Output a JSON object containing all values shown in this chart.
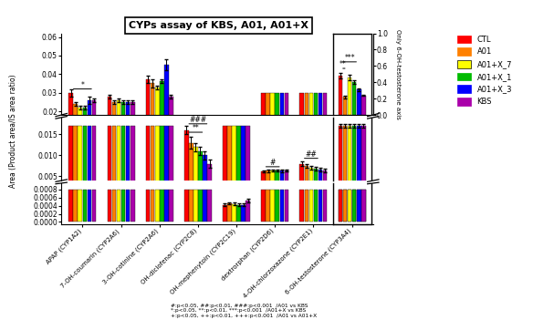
{
  "title": "CYPs assay of KBS, A01, A01+X",
  "ylabel": "Area (Product area/IS area ratio)",
  "ylabel_right": "Only 6-OH-testosterone axis",
  "groups": [
    "APAP (CYP1A2)",
    "7-OH-coumarin (CYP2A6)",
    "3-OH-cotinine (CYP2A6)",
    "OH-diclofenac (CYP2C8)",
    "OH-mephenytoin (CYP2C19)",
    "dextrorphan (CYP2D6)",
    "4-OH-chlorzoxazone (CYP2E1)",
    "6-OH-testosterone (CYP3A4)"
  ],
  "series_labels": [
    "CTL",
    "A01",
    "A01+X_7",
    "A01+X_1",
    "A01+X_3",
    "KBS"
  ],
  "colors": [
    "#FF0000",
    "#FF8000",
    "#FFFF00",
    "#00BB00",
    "#0000FF",
    "#AA00AA"
  ],
  "bar_width": 0.12,
  "top": {
    "means": [
      [
        0.03,
        0.024,
        0.022,
        0.022,
        0.026,
        0.026
      ],
      [
        0.028,
        0.025,
        0.026,
        0.025,
        0.025,
        0.025
      ],
      [
        0.037,
        0.035,
        0.033,
        0.036,
        0.045,
        0.028
      ],
      [
        null,
        null,
        null,
        null,
        null,
        null
      ],
      [
        null,
        null,
        null,
        null,
        null,
        null
      ],
      [
        null,
        null,
        null,
        null,
        null,
        null
      ],
      [
        null,
        null,
        null,
        null,
        null,
        null
      ],
      [
        null,
        null,
        null,
        null,
        null,
        null
      ]
    ],
    "errors": [
      [
        0.002,
        0.001,
        0.001,
        0.001,
        0.002,
        0.001
      ],
      [
        0.001,
        0.001,
        0.001,
        0.001,
        0.001,
        0.001
      ],
      [
        0.002,
        0.002,
        0.001,
        0.001,
        0.003,
        0.001
      ],
      [
        null,
        null,
        null,
        null,
        null,
        null
      ],
      [
        null,
        null,
        null,
        null,
        null,
        null
      ],
      [
        null,
        null,
        null,
        null,
        null,
        null
      ],
      [
        null,
        null,
        null,
        null,
        null,
        null
      ],
      [
        null,
        null,
        null,
        null,
        null,
        null
      ]
    ],
    "ylim": [
      0.018,
      0.062
    ],
    "yticks": [
      0.02,
      0.03,
      0.04,
      0.05,
      0.06
    ]
  },
  "mid": {
    "means": [
      [
        null,
        null,
        null,
        null,
        null,
        null
      ],
      [
        null,
        null,
        null,
        null,
        null,
        null
      ],
      [
        null,
        null,
        null,
        null,
        null,
        null
      ],
      [
        0.016,
        0.013,
        0.012,
        0.011,
        0.01,
        0.008
      ],
      [
        null,
        null,
        null,
        null,
        null,
        null
      ],
      [
        0.0062,
        0.0063,
        0.0064,
        0.0064,
        0.0063,
        0.0064
      ],
      [
        0.008,
        0.0075,
        0.007,
        0.0068,
        0.0066,
        0.0064
      ],
      [
        null,
        null,
        null,
        null,
        null,
        null
      ]
    ],
    "errors": [
      [
        null,
        null,
        null,
        null,
        null,
        null
      ],
      [
        null,
        null,
        null,
        null,
        null,
        null
      ],
      [
        null,
        null,
        null,
        null,
        null,
        null
      ],
      [
        0.001,
        0.0015,
        0.001,
        0.001,
        0.001,
        0.001
      ],
      [
        null,
        null,
        null,
        null,
        null,
        null
      ],
      [
        0.0003,
        0.0003,
        0.0003,
        0.0003,
        0.0003,
        0.0003
      ],
      [
        0.0005,
        0.0005,
        0.0004,
        0.0005,
        0.0004,
        0.0004
      ],
      [
        null,
        null,
        null,
        null,
        null,
        null
      ]
    ],
    "ylim": [
      0.004,
      0.019
    ],
    "yticks": [
      0.005,
      0.01,
      0.015
    ]
  },
  "bot": {
    "means": [
      [
        null,
        null,
        null,
        null,
        null,
        null
      ],
      [
        null,
        null,
        null,
        null,
        null,
        null
      ],
      [
        null,
        null,
        null,
        null,
        null,
        null
      ],
      [
        null,
        null,
        null,
        null,
        null,
        null
      ],
      [
        0.00042,
        0.00046,
        0.00044,
        0.00042,
        0.00042,
        0.00052
      ],
      [
        null,
        null,
        null,
        null,
        null,
        null
      ],
      [
        null,
        null,
        null,
        null,
        null,
        null
      ],
      [
        null,
        null,
        null,
        null,
        null,
        null
      ]
    ],
    "errors": [
      [
        null,
        null,
        null,
        null,
        null,
        null
      ],
      [
        null,
        null,
        null,
        null,
        null,
        null
      ],
      [
        null,
        null,
        null,
        null,
        null,
        null
      ],
      [
        null,
        null,
        null,
        null,
        null,
        null
      ],
      [
        3e-05,
        3e-05,
        3e-05,
        3e-05,
        3e-05,
        4e-05
      ],
      [
        null,
        null,
        null,
        null,
        null,
        null
      ],
      [
        null,
        null,
        null,
        null,
        null,
        null
      ],
      [
        null,
        null,
        null,
        null,
        null,
        null
      ]
    ],
    "ylim": [
      -5e-05,
      0.00095
    ],
    "yticks": [
      0.0,
      0.0002,
      0.0004,
      0.0006,
      0.0008
    ]
  },
  "right_axis": {
    "means": [
      0.48,
      0.22,
      0.46,
      0.4,
      0.31,
      0.24
    ],
    "errors": [
      0.03,
      0.02,
      0.03,
      0.02,
      0.02,
      0.01
    ],
    "ylim": [
      0.0,
      1.0
    ],
    "yticks": [
      0.0,
      0.2,
      0.4,
      0.6,
      0.8,
      1.0
    ]
  },
  "footnote": "#:p<0.05, ##:p<0.01, ###:p<0.001  /A01 vs KBS\n*:p<0.05, **:p<0.01, ***:p<0.001  /A01+X vs KBS\n+:p<0.05, ++:p<0.01, +++:p<0.001  /A01 vs A01+X",
  "background_color": "#FFFFFF"
}
